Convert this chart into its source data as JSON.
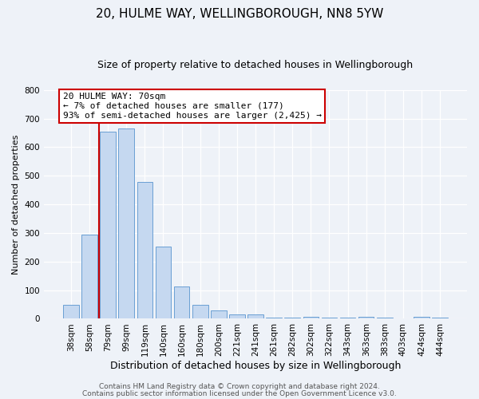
{
  "title": "20, HULME WAY, WELLINGBOROUGH, NN8 5YW",
  "subtitle": "Size of property relative to detached houses in Wellingborough",
  "xlabel": "Distribution of detached houses by size in Wellingborough",
  "ylabel": "Number of detached properties",
  "bar_labels": [
    "38sqm",
    "58sqm",
    "79sqm",
    "99sqm",
    "119sqm",
    "140sqm",
    "160sqm",
    "180sqm",
    "200sqm",
    "221sqm",
    "241sqm",
    "261sqm",
    "282sqm",
    "302sqm",
    "322sqm",
    "343sqm",
    "363sqm",
    "383sqm",
    "403sqm",
    "424sqm",
    "444sqm"
  ],
  "bar_values": [
    50,
    295,
    655,
    665,
    478,
    253,
    114,
    50,
    28,
    15,
    15,
    5,
    5,
    8,
    5,
    5,
    8,
    5,
    0,
    8,
    5
  ],
  "bar_color": "#c5d8f0",
  "bar_edge_color": "#6a9fd4",
  "vline_color": "#cc0000",
  "vline_pos": 1.5,
  "ylim": [
    0,
    800
  ],
  "yticks": [
    0,
    100,
    200,
    300,
    400,
    500,
    600,
    700,
    800
  ],
  "annotation_title": "20 HULME WAY: 70sqm",
  "annotation_line1": "← 7% of detached houses are smaller (177)",
  "annotation_line2": "93% of semi-detached houses are larger (2,425) →",
  "annotation_box_facecolor": "#ffffff",
  "annotation_box_edgecolor": "#cc0000",
  "footnote1": "Contains HM Land Registry data © Crown copyright and database right 2024.",
  "footnote2": "Contains public sector information licensed under the Open Government Licence v3.0.",
  "background_color": "#eef2f8",
  "grid_color": "#ffffff",
  "title_fontsize": 11,
  "subtitle_fontsize": 9,
  "xlabel_fontsize": 9,
  "ylabel_fontsize": 8,
  "tick_fontsize": 7.5,
  "annotation_fontsize": 8,
  "footnote_fontsize": 6.5
}
